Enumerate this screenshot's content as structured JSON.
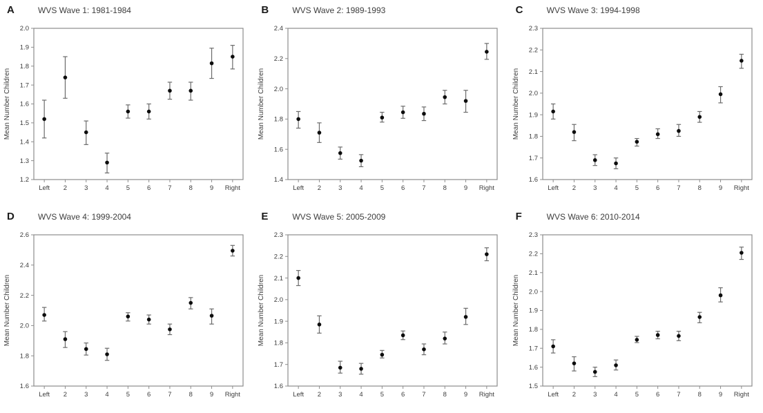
{
  "styles": {
    "background": "#ffffff",
    "point_color": "#0d0d0d",
    "errorbar_color": "#6a6a6a",
    "axis_color": "#8c8c8c",
    "text_color": "#3d3d3d"
  },
  "chart_data": [
    {
      "type": "scatter",
      "panel_label": "A",
      "title": "WVS Wave 1: 1981-1984",
      "xlabel": "",
      "ylabel": "Mean Number Children",
      "categories": [
        "Left",
        "2",
        "3",
        "4",
        "5",
        "6",
        "7",
        "8",
        "9",
        "Right"
      ],
      "ylim": [
        1.2,
        2.0
      ],
      "ytick_step": 0.1,
      "grid": false,
      "values": [
        1.52,
        1.74,
        1.45,
        1.29,
        1.56,
        1.56,
        1.67,
        1.67,
        1.815,
        1.85
      ],
      "ci_low": [
        1.42,
        1.63,
        1.385,
        1.235,
        1.525,
        1.52,
        1.625,
        1.62,
        1.735,
        1.785
      ],
      "ci_high": [
        1.62,
        1.85,
        1.51,
        1.34,
        1.595,
        1.6,
        1.715,
        1.715,
        1.895,
        1.91
      ]
    },
    {
      "type": "scatter",
      "panel_label": "B",
      "title": "WVS Wave 2: 1989-1993",
      "xlabel": "",
      "ylabel": "Mean Number Children",
      "categories": [
        "Left",
        "2",
        "3",
        "4",
        "5",
        "6",
        "7",
        "8",
        "9",
        "Right"
      ],
      "ylim": [
        1.4,
        2.4
      ],
      "ytick_step": 0.2,
      "grid": false,
      "values": [
        1.8,
        1.71,
        1.575,
        1.525,
        1.81,
        1.845,
        1.835,
        1.945,
        1.92,
        2.245
      ],
      "ci_low": [
        1.74,
        1.645,
        1.535,
        1.485,
        1.78,
        1.805,
        1.79,
        1.9,
        1.845,
        2.195
      ],
      "ci_high": [
        1.85,
        1.775,
        1.615,
        1.565,
        1.845,
        1.885,
        1.88,
        1.99,
        1.99,
        2.3
      ]
    },
    {
      "type": "scatter",
      "panel_label": "C",
      "title": "WVS Wave 3: 1994-1998",
      "xlabel": "",
      "ylabel": "Mean Number Children",
      "categories": [
        "Left",
        "2",
        "3",
        "4",
        "5",
        "6",
        "7",
        "8",
        "9",
        "Right"
      ],
      "ylim": [
        1.6,
        2.3
      ],
      "ytick_step": 0.1,
      "grid": false,
      "values": [
        1.915,
        1.82,
        1.69,
        1.675,
        1.775,
        1.81,
        1.825,
        1.89,
        1.995,
        2.15
      ],
      "ci_low": [
        1.88,
        1.78,
        1.665,
        1.65,
        1.755,
        1.79,
        1.8,
        1.865,
        1.955,
        2.115
      ],
      "ci_high": [
        1.95,
        1.855,
        1.715,
        1.7,
        1.79,
        1.835,
        1.855,
        1.915,
        2.03,
        2.18
      ]
    },
    {
      "type": "scatter",
      "panel_label": "D",
      "title": "WVS Wave 4: 1999-2004",
      "xlabel": "",
      "ylabel": "Mean Number Children",
      "categories": [
        "Left",
        "2",
        "3",
        "4",
        "5",
        "6",
        "7",
        "8",
        "9",
        "Right"
      ],
      "ylim": [
        1.6,
        2.6
      ],
      "ytick_step": 0.2,
      "grid": false,
      "values": [
        2.07,
        1.91,
        1.845,
        1.81,
        2.06,
        2.04,
        1.975,
        2.15,
        2.065,
        2.495
      ],
      "ci_low": [
        2.03,
        1.855,
        1.805,
        1.77,
        2.03,
        2.01,
        1.94,
        2.11,
        2.01,
        2.46
      ],
      "ci_high": [
        2.12,
        1.96,
        1.885,
        1.85,
        2.085,
        2.07,
        2.01,
        2.185,
        2.11,
        2.53
      ]
    },
    {
      "type": "scatter",
      "panel_label": "E",
      "title": "WVS Wave 5: 2005-2009",
      "xlabel": "",
      "ylabel": "Mean Number Children",
      "categories": [
        "Left",
        "2",
        "3",
        "4",
        "5",
        "6",
        "7",
        "8",
        "9",
        "Right"
      ],
      "ylim": [
        1.6,
        2.3
      ],
      "ytick_step": 0.1,
      "grid": false,
      "values": [
        2.1,
        1.885,
        1.685,
        1.68,
        1.745,
        1.835,
        1.77,
        1.82,
        1.92,
        2.21
      ],
      "ci_low": [
        2.065,
        1.845,
        1.66,
        1.655,
        1.73,
        1.815,
        1.745,
        1.795,
        1.885,
        2.18
      ],
      "ci_high": [
        2.135,
        1.925,
        1.715,
        1.705,
        1.765,
        1.855,
        1.795,
        1.85,
        1.96,
        2.24
      ]
    },
    {
      "type": "scatter",
      "panel_label": "F",
      "title": "WVS Wave 6: 2010-2014",
      "xlabel": "",
      "ylabel": "Mean Number Children",
      "categories": [
        "Left",
        "2",
        "3",
        "4",
        "5",
        "6",
        "7",
        "8",
        "9",
        "Right"
      ],
      "ylim": [
        1.5,
        2.3
      ],
      "ytick_step": 0.1,
      "grid": false,
      "values": [
        1.71,
        1.62,
        1.575,
        1.61,
        1.745,
        1.77,
        1.765,
        1.865,
        1.98,
        2.205
      ],
      "ci_low": [
        1.675,
        1.58,
        1.55,
        1.585,
        1.73,
        1.75,
        1.74,
        1.835,
        1.945,
        2.17
      ],
      "ci_high": [
        1.745,
        1.655,
        1.6,
        1.638,
        1.763,
        1.79,
        1.79,
        1.89,
        2.02,
        2.235
      ]
    }
  ]
}
